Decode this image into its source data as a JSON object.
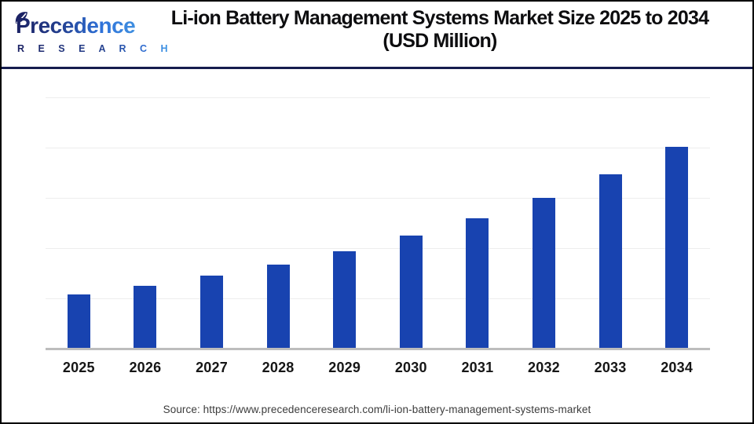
{
  "logo": {
    "brand_top": "Precedence",
    "brand_bottom": "R E S E A R C H"
  },
  "header": {
    "title_line1": "Li-ion Battery Management Systems Market Size 2025 to 2034",
    "title_line2": "(USD Million)"
  },
  "chart_data": {
    "type": "bar",
    "title": "Li-ion Battery Management Systems Market Size 2025 to 2034 (USD Million)",
    "unit": "USD Million",
    "categories": [
      "2025",
      "2026",
      "2027",
      "2028",
      "2029",
      "2030",
      "2031",
      "2032",
      "2033",
      "2034"
    ],
    "values": [
      5420,
      6270,
      7250,
      8390,
      9700,
      11220,
      12980,
      15010,
      17360,
      20090
    ],
    "xlabel": "",
    "ylabel": "",
    "ylim": [
      0,
      25000
    ],
    "gridline_step": 5000,
    "grid": "horizontal",
    "legend": "none",
    "bar_color": "#1843b0"
  },
  "footer": {
    "source": "Source: https://www.precedenceresearch.com/li-ion-battery-management-systems-market"
  },
  "colors": {
    "bar": "#1843b0",
    "header_divider": "#161c4e",
    "logo_navy": "#1b2264",
    "logo_blue": "#2f72d9",
    "gridline": "#ededed",
    "axis_line": "#bdbdbd"
  }
}
